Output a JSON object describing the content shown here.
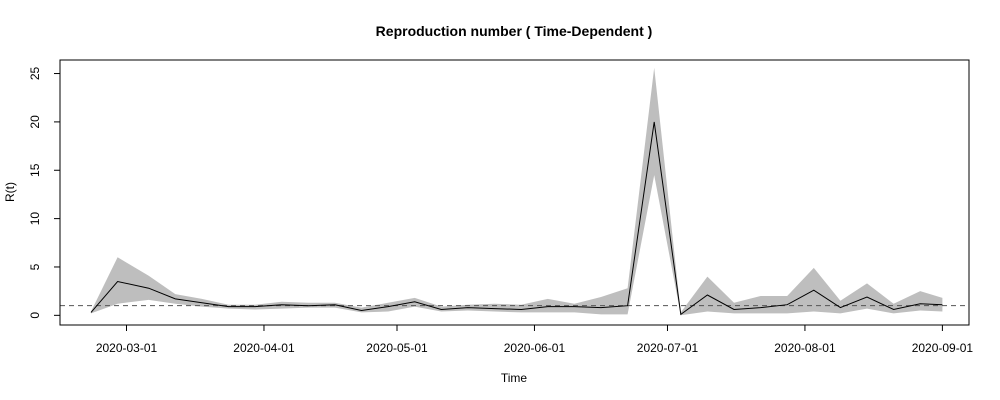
{
  "chart_data": {
    "type": "line",
    "title": "Reproduction number ( Time-Dependent )",
    "xlabel": "Time",
    "ylabel": "R(t)",
    "x_ticks": [
      "2020-03-01",
      "2020-04-01",
      "2020-05-01",
      "2020-06-01",
      "2020-07-01",
      "2020-08-01",
      "2020-09-01"
    ],
    "y_ticks": [
      0,
      5,
      10,
      15,
      20,
      25
    ],
    "xlim": [
      "2020-02-15",
      "2020-09-07"
    ],
    "ylim": [
      -1,
      26.4
    ],
    "reference_line": {
      "y": 1,
      "style": "dashed"
    },
    "grid": false,
    "colors": {
      "line": "#000000",
      "band": "#bebebe",
      "reference": "#555555"
    },
    "series": [
      {
        "x": [
          "2020-02-22",
          "2020-02-28",
          "2020-03-06",
          "2020-03-12",
          "2020-03-18",
          "2020-03-24",
          "2020-03-30",
          "2020-04-05",
          "2020-04-11",
          "2020-04-17",
          "2020-04-23",
          "2020-04-29",
          "2020-05-05",
          "2020-05-11",
          "2020-05-17",
          "2020-05-23",
          "2020-05-29",
          "2020-06-04",
          "2020-06-10",
          "2020-06-16",
          "2020-06-22",
          "2020-06-28",
          "2020-07-04",
          "2020-07-10",
          "2020-07-16",
          "2020-07-22",
          "2020-07-28",
          "2020-08-03",
          "2020-08-09",
          "2020-08-15",
          "2020-08-21",
          "2020-08-27",
          "2020-09-01"
        ],
        "y": [
          0.3,
          3.5,
          2.8,
          1.7,
          1.3,
          0.9,
          0.9,
          1.1,
          1.0,
          1.1,
          0.5,
          0.9,
          1.4,
          0.6,
          0.8,
          0.7,
          0.6,
          0.9,
          0.9,
          0.8,
          1.0,
          20.0,
          0.1,
          2.1,
          0.6,
          0.8,
          1.1,
          2.6,
          0.8,
          1.9,
          0.6,
          1.2,
          1.1
        ],
        "lower": [
          0.2,
          1.2,
          1.6,
          1.2,
          0.9,
          0.7,
          0.6,
          0.7,
          0.8,
          0.8,
          0.3,
          0.4,
          0.9,
          0.4,
          0.5,
          0.4,
          0.3,
          0.3,
          0.3,
          0.1,
          0.1,
          14.5,
          0.0,
          0.4,
          0.2,
          0.2,
          0.2,
          0.4,
          0.2,
          0.7,
          0.2,
          0.5,
          0.4
        ],
        "upper": [
          0.4,
          6.0,
          4.1,
          2.2,
          1.7,
          1.1,
          1.1,
          1.4,
          1.3,
          1.3,
          0.8,
          1.3,
          1.8,
          0.9,
          1.1,
          1.2,
          1.1,
          1.7,
          1.2,
          1.9,
          2.8,
          25.6,
          0.3,
          4.0,
          1.3,
          2.0,
          2.0,
          4.9,
          1.5,
          3.3,
          1.2,
          2.5,
          1.8
        ]
      }
    ]
  }
}
